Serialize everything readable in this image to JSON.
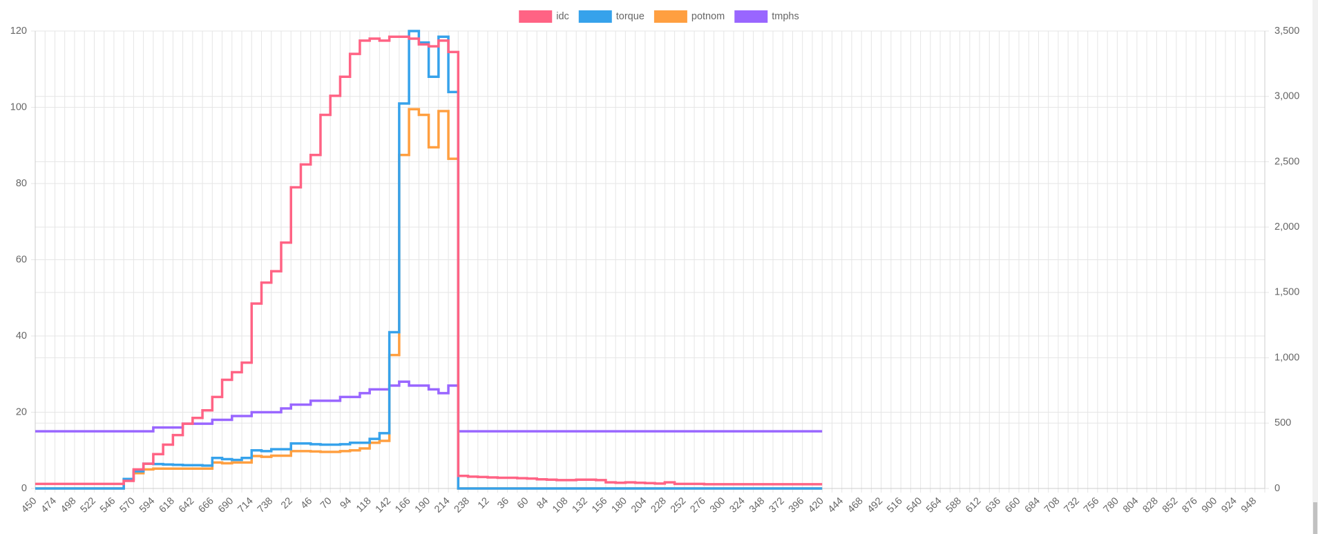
{
  "chart_data": {
    "type": "line",
    "stepped": true,
    "grid": true,
    "legend": "top",
    "categories": [
      "450",
      null,
      "474",
      null,
      "498",
      null,
      "522",
      null,
      "546",
      null,
      "570",
      null,
      "594",
      null,
      "618",
      null,
      "642",
      null,
      "666",
      null,
      "690",
      null,
      "714",
      null,
      "738",
      null,
      "22",
      null,
      "46",
      null,
      "70",
      null,
      "94",
      null,
      "118",
      null,
      "142",
      null,
      "166",
      null,
      "190",
      null,
      "214",
      null,
      "238",
      null,
      "12",
      null,
      "36",
      null,
      "60",
      null,
      "84",
      null,
      "108",
      null,
      "132",
      null,
      "156",
      null,
      "180",
      null,
      "204",
      null,
      "228",
      null,
      "252",
      null,
      "276",
      null,
      "300",
      null,
      "324",
      null,
      "348",
      null,
      "372",
      null,
      "396",
      null,
      "420",
      null,
      "444",
      null,
      "468",
      null,
      "492",
      null,
      "516",
      null,
      "540",
      null,
      "564",
      null,
      "588",
      null,
      "612",
      null,
      "636",
      null,
      "660",
      null,
      "684",
      null,
      "708",
      null,
      "732",
      null,
      "756",
      null,
      "780",
      null,
      "804",
      null,
      "828",
      null,
      "852",
      null,
      "876",
      null,
      "900",
      null,
      "924",
      null,
      "948",
      null
    ],
    "series": [
      {
        "name": "idc",
        "color": "#ff6384",
        "values": [
          1.2,
          1.2,
          1.2,
          1.2,
          1.2,
          1.2,
          1.2,
          1.2,
          1.2,
          2,
          5,
          6.5,
          9,
          11.5,
          14,
          17,
          18.5,
          20.5,
          24,
          28.5,
          30.5,
          33,
          48.5,
          54,
          57,
          64.5,
          79,
          85,
          87.5,
          98,
          103,
          108,
          114,
          117.5,
          118,
          117.5,
          118.5,
          118.5,
          118,
          116.5,
          116,
          117.5,
          114.5,
          3.3,
          3.1,
          3.0,
          2.9,
          2.8,
          2.8,
          2.7,
          2.6,
          2.4,
          2.3,
          2.2,
          2.2,
          2.3,
          2.3,
          2.2,
          1.6,
          1.5,
          1.6,
          1.5,
          1.4,
          1.3,
          1.6,
          1.2,
          1.2,
          1.2,
          1.1,
          1.1,
          1.1,
          1.1,
          1.1,
          1.1,
          1.1,
          1.1,
          1.1,
          1.1,
          1.1,
          1.1,
          1.1,
          null,
          null,
          null,
          null,
          null,
          null,
          null,
          null,
          null,
          null,
          null,
          null,
          null,
          null,
          null,
          null,
          null,
          null,
          null,
          null,
          null,
          null,
          null,
          null,
          null,
          null,
          null,
          null,
          null,
          null,
          null,
          null,
          null,
          null,
          null,
          null,
          null,
          null,
          null,
          null,
          null,
          null,
          null,
          null,
          null
        ]
      },
      {
        "name": "torque",
        "color": "#36a2eb",
        "values": [
          0,
          0,
          0,
          0,
          0,
          0,
          0,
          0,
          0,
          2.5,
          4.5,
          6.5,
          6.4,
          6.3,
          6.2,
          6.1,
          6.1,
          6.0,
          8,
          7.7,
          7.5,
          8,
          10,
          9.8,
          10.3,
          10.3,
          11.8,
          11.8,
          11.6,
          11.5,
          11.5,
          11.6,
          12,
          12,
          13,
          14.5,
          41,
          101,
          120,
          117,
          108,
          118.5,
          104,
          0,
          0,
          0,
          0,
          0,
          0,
          0,
          0,
          0,
          0,
          0,
          0,
          0,
          0,
          0,
          0,
          0,
          0,
          0,
          0,
          0,
          0,
          0,
          0,
          0,
          0,
          0,
          0,
          0,
          0,
          0,
          0,
          0,
          0,
          0,
          0,
          0,
          0,
          null,
          null,
          null,
          null,
          null,
          null,
          null,
          null,
          null,
          null,
          null,
          null,
          null,
          null,
          null,
          null,
          null,
          null,
          null,
          null,
          null,
          null,
          null,
          null,
          null,
          null,
          null,
          null,
          null,
          null,
          null,
          null,
          null,
          null,
          null,
          null,
          null,
          null,
          null,
          null,
          null,
          null,
          null,
          null,
          null
        ]
      },
      {
        "name": "potnom",
        "color": "#ff9f40",
        "values": [
          0,
          0,
          0,
          0,
          0,
          0,
          0,
          0,
          0,
          2.2,
          4,
          5,
          5.2,
          5.2,
          5.2,
          5.2,
          5.2,
          5.2,
          6.8,
          6.6,
          6.8,
          6.8,
          8.5,
          8.3,
          8.6,
          8.6,
          9.8,
          9.8,
          9.7,
          9.6,
          9.6,
          9.8,
          10,
          10.5,
          12,
          12.5,
          35,
          87.5,
          99.5,
          98,
          89.5,
          99,
          86.5,
          0,
          0,
          0,
          0,
          0,
          0,
          0,
          0,
          0,
          0,
          0,
          0,
          0,
          0,
          0,
          0,
          0,
          0,
          0,
          0,
          0,
          0,
          0,
          0,
          0,
          0,
          0,
          0,
          0,
          0,
          0,
          0,
          0,
          0,
          0,
          0,
          0,
          0,
          null,
          null,
          null,
          null,
          null,
          null,
          null,
          null,
          null,
          null,
          null,
          null,
          null,
          null,
          null,
          null,
          null,
          null,
          null,
          null,
          null,
          null,
          null,
          null,
          null,
          null,
          null,
          null,
          null,
          null,
          null,
          null,
          null,
          null,
          null,
          null,
          null,
          null,
          null,
          null,
          null,
          null,
          null,
          null,
          null
        ]
      },
      {
        "name": "tmphs",
        "color": "#9966ff",
        "values": [
          15,
          15,
          15,
          15,
          15,
          15,
          15,
          15,
          15,
          15,
          15,
          15,
          16,
          16,
          16,
          17,
          17,
          17,
          18,
          18,
          19,
          19,
          20,
          20,
          20,
          21,
          22,
          22,
          23,
          23,
          23,
          24,
          24,
          25,
          26,
          26,
          27,
          28,
          27,
          27,
          26,
          25,
          27,
          15,
          15,
          15,
          15,
          15,
          15,
          15,
          15,
          15,
          15,
          15,
          15,
          15,
          15,
          15,
          15,
          15,
          15,
          15,
          15,
          15,
          15,
          15,
          15,
          15,
          15,
          15,
          15,
          15,
          15,
          15,
          15,
          15,
          15,
          15,
          15,
          15,
          15,
          null,
          null,
          null,
          null,
          null,
          null,
          null,
          null,
          null,
          null,
          null,
          null,
          null,
          null,
          null,
          null,
          null,
          null,
          null,
          null,
          null,
          null,
          null,
          null,
          null,
          null,
          null,
          null,
          null,
          null,
          null,
          null,
          null,
          null,
          null,
          null,
          null,
          null,
          null,
          null,
          null,
          null,
          null,
          null,
          null
        ]
      }
    ],
    "ylim": [
      0,
      120
    ],
    "yticks": [
      0,
      20,
      40,
      60,
      80,
      100,
      120
    ],
    "y2lim": [
      0,
      3500
    ],
    "y2ticks": [
      0,
      500,
      {
        "value": 1000,
        "label": "1,000"
      },
      {
        "value": 1500,
        "label": "1,500"
      },
      {
        "value": 2000,
        "label": "2,000"
      },
      {
        "value": 2500,
        "label": "2,500"
      },
      {
        "value": 3000,
        "label": "3,000"
      },
      {
        "value": 3500,
        "label": "3,500"
      }
    ]
  }
}
